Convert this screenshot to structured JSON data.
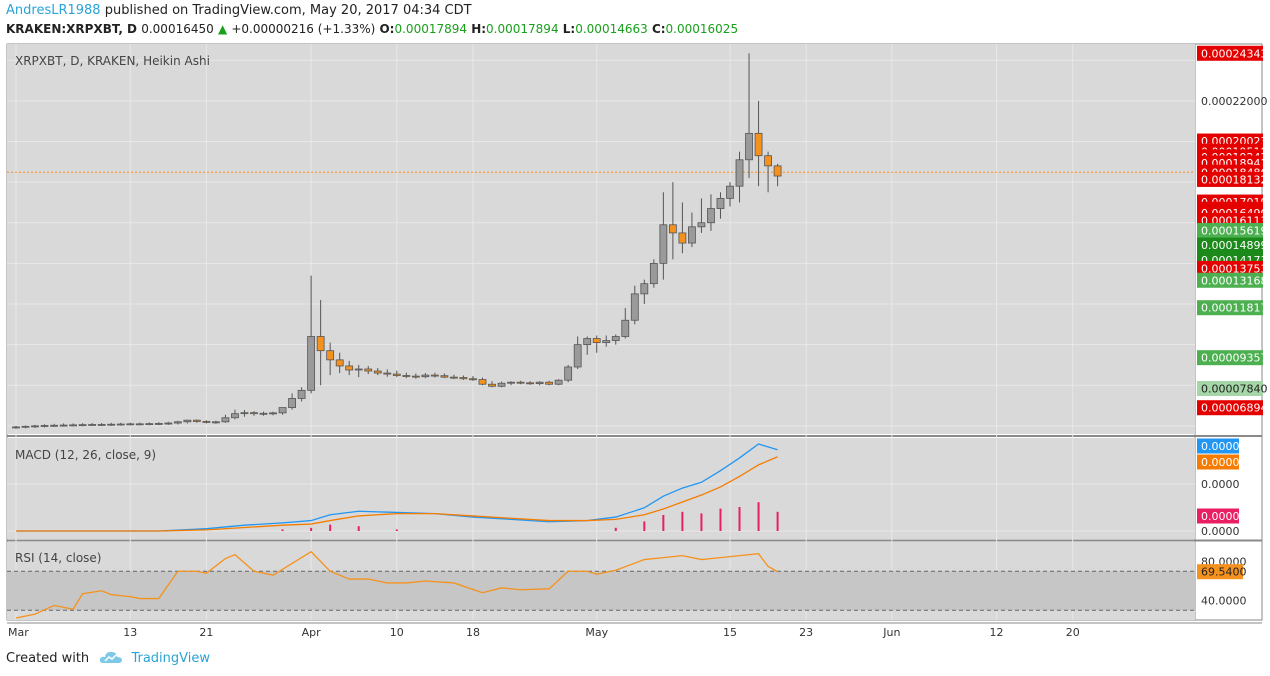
{
  "header": {
    "author": "AndresLR1988",
    "published_text": "published on TradingView.com, May 20, 2017 04:34 CDT",
    "symbol_line": "KRAKEN:XRPXBT, D",
    "last": "0.00016450",
    "change_arrow": "▲",
    "change": "+0.00000216 (+1.33%)",
    "o_label": "O:",
    "o_value": "0.00017894",
    "h_label": "H:",
    "h_value": "0.00017894",
    "l_label": "L:",
    "l_value": "0.00014663",
    "c_label": "C:",
    "c_value": "0.00016025"
  },
  "footer": {
    "created_with": "Created with",
    "brand": "TradingView"
  },
  "colors": {
    "bull": "#9a9a9a",
    "bear": "#f5921e",
    "macd": "#2196f3",
    "signal": "#f57c00",
    "hist": "#e91e63",
    "rsi": "#f5921e",
    "label_red": "#e50000",
    "label_green": "#4caf50",
    "label_darkgreen": "#1b8a1b",
    "label_lightgreen": "#a5d6a7",
    "price_line": "#f5921e"
  },
  "chart_data": [
    {
      "type": "candlestick",
      "title": "XRPXBT, D, KRAKEN, Heikin Ashi",
      "ylim": [
        5.6e-05,
        0.000248
      ],
      "y_ticks": [
        "0.00022000"
      ],
      "current_price": 0.00018486,
      "price_labels": [
        {
          "text": "0.00024343",
          "value": 0.00024343,
          "color": "red"
        },
        {
          "text": "0.00020023",
          "value": 0.00020023,
          "color": "red"
        },
        {
          "text": "0.00019518",
          "value": 0.00019518,
          "color": "red"
        },
        {
          "text": "0.00019243",
          "value": 0.00019243,
          "color": "red"
        },
        {
          "text": "0.00018941",
          "value": 0.00018941,
          "color": "red"
        },
        {
          "text": "0.00018486",
          "value": 0.00018486,
          "color": "red"
        },
        {
          "text": "0.00018132",
          "value": 0.00018132,
          "color": "red"
        },
        {
          "text": "0.00017019",
          "value": 0.00017019,
          "color": "red"
        },
        {
          "text": "0.00016663",
          "value": 0.00016663,
          "color": "red"
        },
        {
          "text": "0.00016490",
          "value": 0.0001649,
          "color": "red"
        },
        {
          "text": "0.00016113",
          "value": 0.00016113,
          "color": "red"
        },
        {
          "text": "0.00015619",
          "value": 0.00015619,
          "color": "green"
        },
        {
          "text": "0.00014899",
          "value": 0.00014899,
          "color": "darkgreen"
        },
        {
          "text": "0.00014173",
          "value": 0.00014173,
          "color": "darkgreen"
        },
        {
          "text": "0.00013753",
          "value": 0.00013753,
          "color": "red"
        },
        {
          "text": "0.00013168",
          "value": 0.00013168,
          "color": "green"
        },
        {
          "text": "0.00011817",
          "value": 0.00011817,
          "color": "green"
        },
        {
          "text": "0.00009357",
          "value": 9.357e-05,
          "color": "green"
        },
        {
          "text": "0.00007840",
          "value": 7.84e-05,
          "color": "lightgreen"
        },
        {
          "text": "0.00006894",
          "value": 6.894e-05,
          "color": "red"
        }
      ],
      "x_ticks": [
        {
          "label": "Mar",
          "day": 0
        },
        {
          "label": "13",
          "day": 12
        },
        {
          "label": "21",
          "day": 20
        },
        {
          "label": "Apr",
          "day": 31
        },
        {
          "label": "10",
          "day": 40
        },
        {
          "label": "18",
          "day": 48
        },
        {
          "label": "May",
          "day": 61
        },
        {
          "label": "15",
          "day": 75
        },
        {
          "label": "23",
          "day": 83
        },
        {
          "label": "Jun",
          "day": 92
        },
        {
          "label": "12",
          "day": 103
        },
        {
          "label": "20",
          "day": 111
        }
      ],
      "candles": [
        [
          0,
          5.9e-05,
          6e-05,
          5.85e-05,
          5.95e-05
        ],
        [
          1,
          5.95e-05,
          6.02e-05,
          5.88e-05,
          5.98e-05
        ],
        [
          2,
          5.98e-05,
          6.05e-05,
          5.9e-05,
          6e-05
        ],
        [
          3,
          6e-05,
          6.08e-05,
          5.92e-05,
          6.02e-05
        ],
        [
          4,
          6.02e-05,
          6.1e-05,
          5.95e-05,
          6.03e-05
        ],
        [
          5,
          6.03e-05,
          6.12e-05,
          5.96e-05,
          6.04e-05
        ],
        [
          6,
          6.04e-05,
          6.12e-05,
          5.97e-05,
          6.05e-05
        ],
        [
          7,
          6.05e-05,
          6.13e-05,
          5.98e-05,
          6.06e-05
        ],
        [
          8,
          6.06e-05,
          6.14e-05,
          6e-05,
          6.07e-05
        ],
        [
          9,
          6.07e-05,
          6.14e-05,
          6e-05,
          6.07e-05
        ],
        [
          10,
          6.07e-05,
          6.15e-05,
          6e-05,
          6.08e-05
        ],
        [
          11,
          6.08e-05,
          6.15e-05,
          6.01e-05,
          6.09e-05
        ],
        [
          12,
          6.09e-05,
          6.16e-05,
          6.02e-05,
          6.1e-05
        ],
        [
          13,
          6.1e-05,
          6.16e-05,
          6.03e-05,
          6.1e-05
        ],
        [
          14,
          6.1e-05,
          6.17e-05,
          6.03e-05,
          6.11e-05
        ],
        [
          15,
          6.11e-05,
          6.18e-05,
          6.04e-05,
          6.12e-05
        ],
        [
          16,
          6.12e-05,
          6.2e-05,
          6.05e-05,
          6.14e-05
        ],
        [
          17,
          6.14e-05,
          6.25e-05,
          6.07e-05,
          6.2e-05
        ],
        [
          18,
          6.2e-05,
          6.3e-05,
          6.12e-05,
          6.28e-05
        ],
        [
          19,
          6.28e-05,
          6.32e-05,
          6.15e-05,
          6.22e-05
        ],
        [
          20,
          6.22e-05,
          6.28e-05,
          6.12e-05,
          6.18e-05
        ],
        [
          21,
          6.18e-05,
          6.25e-05,
          6.1e-05,
          6.2e-05
        ],
        [
          22,
          6.2e-05,
          6.55e-05,
          6.15e-05,
          6.4e-05
        ],
        [
          23,
          6.4e-05,
          6.8e-05,
          6.32e-05,
          6.6e-05
        ],
        [
          24,
          6.6e-05,
          6.78e-05,
          6.45e-05,
          6.65e-05
        ],
        [
          25,
          6.65e-05,
          6.72e-05,
          6.5e-05,
          6.6e-05
        ],
        [
          26,
          6.6e-05,
          6.7e-05,
          6.5e-05,
          6.62e-05
        ],
        [
          27,
          6.62e-05,
          6.7e-05,
          6.52e-05,
          6.64e-05
        ],
        [
          28,
          6.64e-05,
          6.9e-05,
          6.55e-05,
          6.9e-05
        ],
        [
          29,
          6.9e-05,
          7.6e-05,
          6.8e-05,
          7.35e-05
        ],
        [
          30,
          7.35e-05,
          7.9e-05,
          7.2e-05,
          7.75e-05
        ],
        [
          31,
          7.75e-05,
          0.000134,
          7.6e-05,
          0.000104
        ],
        [
          32,
          0.000104,
          0.000122,
          8e-05,
          9.7e-05
        ],
        [
          33,
          9.7e-05,
          0.000101,
          8.5e-05,
          9.25e-05
        ],
        [
          34,
          9.25e-05,
          9.6e-05,
          8.6e-05,
          8.95e-05
        ],
        [
          35,
          8.95e-05,
          9.2e-05,
          8.5e-05,
          8.75e-05
        ],
        [
          36,
          8.75e-05,
          9e-05,
          8.4e-05,
          8.8e-05
        ],
        [
          37,
          8.8e-05,
          8.95e-05,
          8.55e-05,
          8.7e-05
        ],
        [
          38,
          8.7e-05,
          8.85e-05,
          8.5e-05,
          8.6e-05
        ],
        [
          39,
          8.6e-05,
          8.78e-05,
          8.42e-05,
          8.55e-05
        ],
        [
          40,
          8.55e-05,
          8.72e-05,
          8.4e-05,
          8.48e-05
        ],
        [
          41,
          8.48e-05,
          8.62e-05,
          8.35e-05,
          8.45e-05
        ],
        [
          42,
          8.45e-05,
          8.58e-05,
          8.32e-05,
          8.42e-05
        ],
        [
          43,
          8.42e-05,
          8.6e-05,
          8.35e-05,
          8.5e-05
        ],
        [
          44,
          8.5e-05,
          8.62e-05,
          8.38e-05,
          8.47e-05
        ],
        [
          45,
          8.47e-05,
          8.58e-05,
          8.35e-05,
          8.4e-05
        ],
        [
          46,
          8.4e-05,
          8.52e-05,
          8.3e-05,
          8.38e-05
        ],
        [
          47,
          8.38e-05,
          8.48e-05,
          8.26e-05,
          8.32e-05
        ],
        [
          48,
          8.32e-05,
          8.45e-05,
          8.22e-05,
          8.28e-05
        ],
        [
          49,
          8.28e-05,
          8.38e-05,
          8e-05,
          8.05e-05
        ],
        [
          50,
          8.05e-05,
          8.2e-05,
          7.9e-05,
          7.95e-05
        ],
        [
          51,
          7.95e-05,
          8.18e-05,
          7.9e-05,
          8.1e-05
        ],
        [
          52,
          8.1e-05,
          8.2e-05,
          8e-05,
          8.15e-05
        ],
        [
          53,
          8.15e-05,
          8.22e-05,
          8.05e-05,
          8.12e-05
        ],
        [
          54,
          8.12e-05,
          8.2e-05,
          8.02e-05,
          8.08e-05
        ],
        [
          55,
          8.08e-05,
          8.2e-05,
          8e-05,
          8.15e-05
        ],
        [
          56,
          8.15e-05,
          8.22e-05,
          8e-05,
          8.05e-05
        ],
        [
          57,
          8.05e-05,
          8.3e-05,
          8e-05,
          8.25e-05
        ],
        [
          58,
          8.25e-05,
          9e-05,
          8.15e-05,
          8.9e-05
        ],
        [
          59,
          8.9e-05,
          0.000104,
          8.8e-05,
          0.0001
        ],
        [
          60,
          0.0001,
          0.000104,
          9.5e-05,
          0.000103
        ],
        [
          61,
          0.000103,
          0.0001045,
          9.6e-05,
          0.000101
        ],
        [
          62,
          0.000101,
          0.0001045,
          9.9e-05,
          0.000102
        ],
        [
          63,
          0.000102,
          0.000105,
          0.0001,
          0.000104
        ],
        [
          64,
          0.000104,
          0.000118,
          0.000103,
          0.000112
        ],
        [
          65,
          0.000112,
          0.000129,
          0.00011,
          0.000125
        ],
        [
          66,
          0.000125,
          0.000132,
          0.00012,
          0.00013
        ],
        [
          67,
          0.00013,
          0.000142,
          0.000128,
          0.00014
        ],
        [
          68,
          0.00014,
          0.000175,
          0.000132,
          0.000159
        ],
        [
          69,
          0.000159,
          0.00018,
          0.000142,
          0.000155
        ],
        [
          70,
          0.000155,
          0.00017,
          0.000145,
          0.00015
        ],
        [
          71,
          0.00015,
          0.000165,
          0.000148,
          0.000158
        ],
        [
          72,
          0.000158,
          0.000172,
          0.000155,
          0.00016
        ],
        [
          73,
          0.00016,
          0.000174,
          0.000156,
          0.000167
        ],
        [
          74,
          0.000167,
          0.000175,
          0.000162,
          0.000172
        ],
        [
          75,
          0.000172,
          0.00018,
          0.000168,
          0.000178
        ],
        [
          76,
          0.000178,
          0.000195,
          0.00017,
          0.000191
        ],
        [
          77,
          0.000191,
          0.0002434,
          0.000182,
          0.000204
        ],
        [
          78,
          0.000204,
          0.00022,
          0.000178,
          0.000193
        ],
        [
          79,
          0.000193,
          0.000195,
          0.000175,
          0.000188
        ],
        [
          80,
          0.000188,
          0.000189,
          0.000178,
          0.000183
        ]
      ]
    },
    {
      "type": "line",
      "title": "MACD (12, 26, close, 9)",
      "y_ticks": [
        "0.0000",
        "0.0000"
      ],
      "value_labels": [
        {
          "text": "0.0000",
          "color": "blue"
        },
        {
          "text": "0.0000",
          "color": "orange"
        },
        {
          "text": "0.0000",
          "color": "pink"
        }
      ],
      "x": [
        0,
        5,
        10,
        15,
        20,
        24,
        28,
        31,
        33,
        36,
        40,
        44,
        48,
        52,
        56,
        60,
        63,
        66,
        68,
        70,
        72,
        74,
        76,
        78,
        80
      ],
      "series": [
        {
          "role": "macd",
          "values": [
            0.0,
            0.0,
            0.0,
            0.0,
            0.02,
            0.05,
            0.07,
            0.09,
            0.14,
            0.17,
            0.16,
            0.15,
            0.12,
            0.1,
            0.08,
            0.09,
            0.12,
            0.2,
            0.3,
            0.37,
            0.42,
            0.52,
            0.63,
            0.75,
            0.7
          ]
        },
        {
          "role": "signal",
          "values": [
            0.0,
            0.0,
            0.0,
            0.0,
            0.01,
            0.03,
            0.05,
            0.06,
            0.09,
            0.13,
            0.15,
            0.15,
            0.13,
            0.11,
            0.09,
            0.09,
            0.1,
            0.14,
            0.19,
            0.25,
            0.31,
            0.38,
            0.47,
            0.57,
            0.64
          ]
        }
      ],
      "histogram": [
        0,
        0,
        0,
        0,
        0,
        0,
        0.01,
        0.02,
        0.04,
        0.03,
        0.01,
        0,
        0,
        0,
        0,
        0,
        0.02,
        0.06,
        0.1,
        0.12,
        0.11,
        0.14,
        0.15,
        0.18,
        0.12
      ]
    },
    {
      "type": "line",
      "title": "RSI (14, close)",
      "y_ticks": [
        "80.0000",
        "40.0000"
      ],
      "band": [
        70,
        30
      ],
      "ylim": [
        20,
        100
      ],
      "last_label": "69.5400",
      "x": [
        0,
        2,
        4,
        6,
        7,
        9,
        10,
        12,
        13,
        15,
        17,
        19,
        20,
        22,
        23,
        25,
        27,
        29,
        31,
        33,
        35,
        37,
        39,
        41,
        43,
        46,
        49,
        51,
        53,
        56,
        58,
        60,
        61,
        63,
        66,
        68,
        70,
        72,
        74,
        76,
        78,
        79,
        80
      ],
      "values": [
        22,
        26,
        35,
        31,
        47,
        50,
        46,
        44,
        42,
        42,
        70,
        70,
        68,
        83,
        87,
        70,
        66,
        78,
        90,
        70,
        62,
        62,
        58,
        58,
        60,
        58,
        48,
        53,
        51,
        52,
        70,
        70,
        67,
        71,
        82,
        84,
        86,
        82,
        84,
        86,
        88,
        75,
        69.54
      ]
    }
  ]
}
